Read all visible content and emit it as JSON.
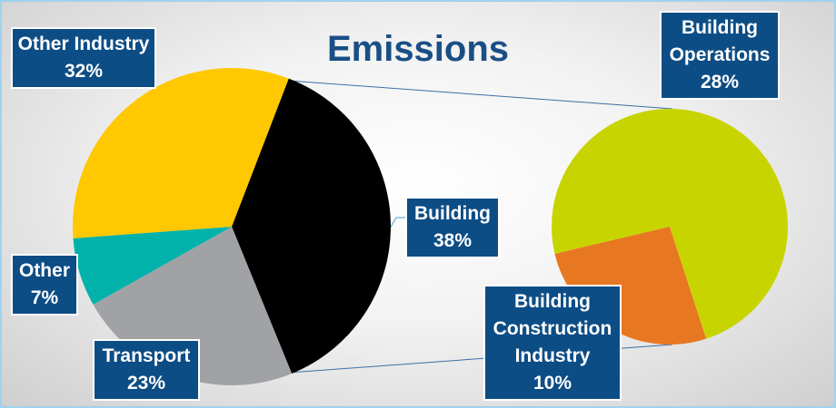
{
  "chart_data": [
    {
      "type": "pie",
      "title": "Emissions",
      "categories": [
        "Building",
        "Transport",
        "Other",
        "Other Industry"
      ],
      "values": [
        38,
        23,
        7,
        32
      ],
      "value_labels": [
        "38%",
        "23%",
        "7%",
        "32%"
      ],
      "colors": [
        "#000000",
        "#a0a2a5",
        "#00b2a9",
        "#ffc800"
      ]
    },
    {
      "type": "pie",
      "categories": [
        "Building Construction Industry",
        "Building Operations"
      ],
      "values": [
        10,
        28
      ],
      "value_labels": [
        "10%",
        "28%"
      ],
      "colors": [
        "#e87722",
        "#c8d400"
      ]
    }
  ]
}
